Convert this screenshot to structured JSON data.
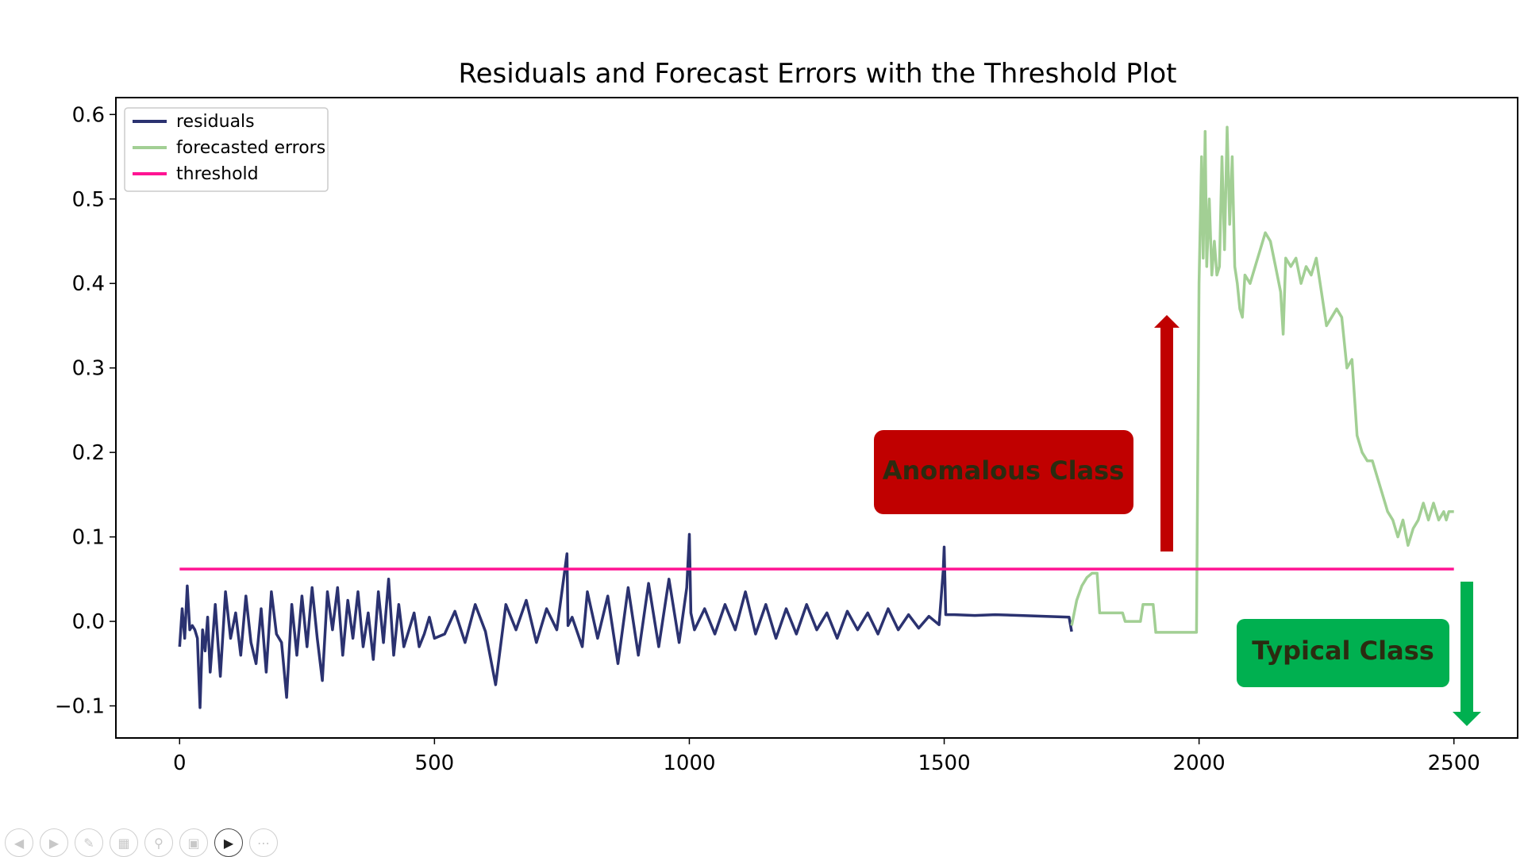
{
  "chart_data": {
    "type": "line",
    "title": "Residuals and Forecast Errors with the Threshold Plot",
    "xlabel": "",
    "ylabel": "",
    "xlim": [
      -125,
      2625
    ],
    "ylim": [
      -0.138,
      0.62
    ],
    "xticks": [
      "0",
      "500",
      "1000",
      "1500",
      "2000",
      "2500"
    ],
    "xtick_values": [
      0,
      500,
      1000,
      1500,
      2000,
      2500
    ],
    "yticks": [
      "−0.1",
      "0.0",
      "0.1",
      "0.2",
      "0.3",
      "0.4",
      "0.5",
      "0.6"
    ],
    "ytick_values": [
      -0.1,
      0.0,
      0.1,
      0.2,
      0.3,
      0.4,
      0.5,
      0.6
    ],
    "legend": "top-left",
    "grid": false,
    "series": [
      {
        "name": "residuals",
        "color": "#2b3270",
        "x": [
          0,
          5,
          10,
          15,
          20,
          25,
          30,
          35,
          40,
          45,
          50,
          55,
          60,
          70,
          80,
          90,
          100,
          110,
          120,
          130,
          140,
          150,
          160,
          170,
          180,
          190,
          200,
          210,
          220,
          230,
          240,
          250,
          260,
          270,
          280,
          290,
          300,
          310,
          320,
          330,
          340,
          350,
          360,
          370,
          380,
          390,
          400,
          410,
          420,
          430,
          440,
          450,
          460,
          470,
          480,
          490,
          500,
          520,
          540,
          560,
          580,
          600,
          620,
          640,
          660,
          680,
          700,
          720,
          740,
          760,
          762,
          770,
          790,
          800,
          820,
          840,
          860,
          880,
          900,
          920,
          940,
          960,
          980,
          995,
          1000,
          1003,
          1010,
          1030,
          1050,
          1070,
          1090,
          1110,
          1130,
          1150,
          1170,
          1190,
          1210,
          1230,
          1250,
          1270,
          1290,
          1310,
          1330,
          1350,
          1370,
          1390,
          1410,
          1430,
          1450,
          1470,
          1490,
          1498,
          1500,
          1503,
          1520,
          1560,
          1600,
          1650,
          1700,
          1745,
          1750
        ],
        "values": [
          -0.03,
          0.015,
          -0.02,
          0.042,
          -0.01,
          -0.005,
          -0.01,
          -0.02,
          -0.102,
          -0.01,
          -0.035,
          0.005,
          -0.06,
          0.02,
          -0.065,
          0.035,
          -0.02,
          0.01,
          -0.04,
          0.03,
          -0.025,
          -0.05,
          0.015,
          -0.06,
          0.035,
          -0.015,
          -0.025,
          -0.09,
          0.02,
          -0.04,
          0.03,
          -0.03,
          0.04,
          -0.02,
          -0.07,
          0.035,
          -0.01,
          0.04,
          -0.04,
          0.025,
          -0.02,
          0.035,
          -0.03,
          0.01,
          -0.045,
          0.035,
          -0.025,
          0.05,
          -0.04,
          0.02,
          -0.03,
          -0.01,
          0.01,
          -0.03,
          -0.015,
          0.005,
          -0.02,
          -0.015,
          0.012,
          -0.025,
          0.02,
          -0.012,
          -0.075,
          0.02,
          -0.01,
          0.025,
          -0.025,
          0.015,
          -0.01,
          0.08,
          -0.005,
          0.005,
          -0.03,
          0.035,
          -0.02,
          0.03,
          -0.05,
          0.04,
          -0.04,
          0.045,
          -0.03,
          0.05,
          -0.025,
          0.04,
          0.103,
          0.01,
          -0.01,
          0.015,
          -0.015,
          0.02,
          -0.01,
          0.035,
          -0.015,
          0.02,
          -0.02,
          0.015,
          -0.015,
          0.02,
          -0.01,
          0.01,
          -0.02,
          0.012,
          -0.01,
          0.01,
          -0.015,
          0.015,
          -0.01,
          0.008,
          -0.008,
          0.006,
          -0.004,
          0.06,
          0.088,
          0.008,
          0.008,
          0.007,
          0.008,
          0.007,
          0.006,
          0.005,
          -0.012
        ]
      },
      {
        "name": "forecasted errors",
        "color": "#a2cf94",
        "x": [
          1750,
          1760,
          1770,
          1780,
          1790,
          1800,
          1805,
          1850,
          1855,
          1885,
          1890,
          1910,
          1915,
          1940,
          1945,
          1995,
          2000,
          2005,
          2008,
          2012,
          2015,
          2020,
          2025,
          2030,
          2035,
          2040,
          2045,
          2050,
          2055,
          2060,
          2065,
          2070,
          2075,
          2080,
          2085,
          2090,
          2100,
          2110,
          2120,
          2130,
          2140,
          2150,
          2160,
          2165,
          2170,
          2180,
          2190,
          2200,
          2210,
          2220,
          2230,
          2240,
          2250,
          2260,
          2270,
          2280,
          2290,
          2300,
          2310,
          2320,
          2330,
          2340,
          2350,
          2360,
          2370,
          2380,
          2390,
          2400,
          2410,
          2420,
          2430,
          2440,
          2450,
          2460,
          2470,
          2480,
          2485,
          2490,
          2500
        ],
        "values": [
          -0.005,
          0.025,
          0.042,
          0.052,
          0.057,
          0.057,
          0.01,
          0.01,
          0.0,
          0.0,
          0.02,
          0.02,
          -0.013,
          -0.013,
          -0.013,
          -0.013,
          0.4,
          0.55,
          0.43,
          0.58,
          0.42,
          0.5,
          0.41,
          0.45,
          0.41,
          0.42,
          0.55,
          0.44,
          0.585,
          0.47,
          0.55,
          0.42,
          0.4,
          0.37,
          0.36,
          0.41,
          0.4,
          0.42,
          0.44,
          0.46,
          0.45,
          0.42,
          0.39,
          0.34,
          0.43,
          0.42,
          0.43,
          0.4,
          0.42,
          0.41,
          0.43,
          0.39,
          0.35,
          0.36,
          0.37,
          0.36,
          0.3,
          0.31,
          0.22,
          0.2,
          0.19,
          0.19,
          0.17,
          0.15,
          0.13,
          0.12,
          0.1,
          0.12,
          0.09,
          0.11,
          0.12,
          0.14,
          0.12,
          0.14,
          0.12,
          0.13,
          0.12,
          0.13,
          0.13
        ]
      },
      {
        "name": "threshold",
        "color": "#ff1493",
        "x": [
          0,
          2500
        ],
        "values": [
          0.062,
          0.062
        ]
      }
    ],
    "annotations": [
      {
        "text": "Anomalous Class",
        "color": "#c00000",
        "arrow": "up"
      },
      {
        "text": "Typical Class",
        "color": "#00b050",
        "arrow": "down"
      }
    ]
  }
}
